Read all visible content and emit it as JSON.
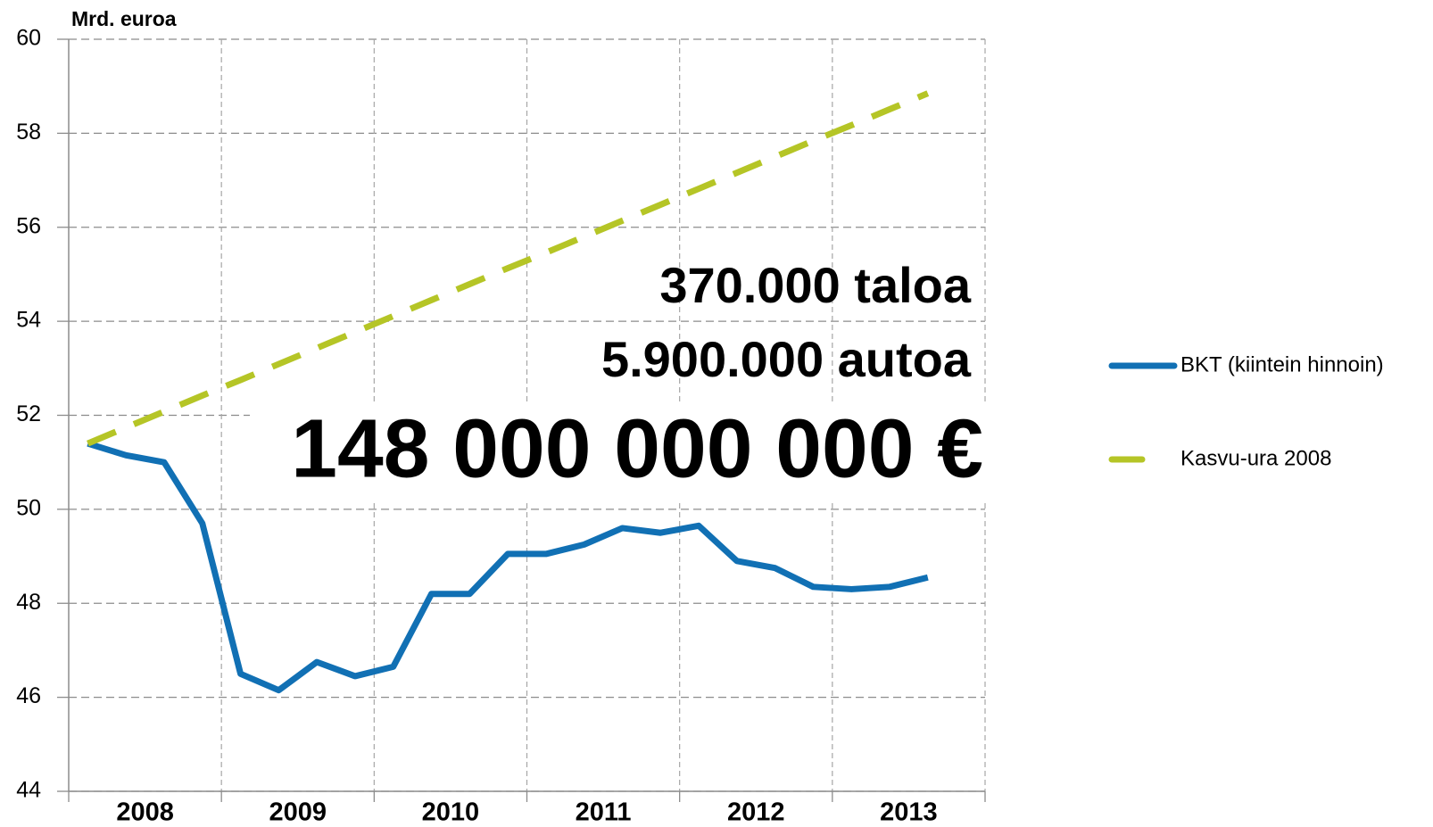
{
  "chart_data": {
    "type": "line",
    "y_axis_label": "Mrd. euroa",
    "categories": [
      "2008",
      "2009",
      "2010",
      "2011",
      "2012",
      "2013"
    ],
    "x": [
      2008.125,
      2008.375,
      2008.625,
      2008.875,
      2009.125,
      2009.375,
      2009.625,
      2009.875,
      2010.125,
      2010.375,
      2010.625,
      2010.875,
      2011.125,
      2011.375,
      2011.625,
      2011.875,
      2012.125,
      2012.375,
      2012.625,
      2012.875,
      2013.125,
      2013.375,
      2013.625
    ],
    "xlim": [
      2008,
      2014
    ],
    "xticks": [
      2008,
      2009,
      2010,
      2011,
      2012,
      2013,
      2014
    ],
    "ylim": [
      44,
      60
    ],
    "yticks": [
      44,
      46,
      48,
      50,
      52,
      54,
      56,
      58,
      60
    ],
    "grid": true,
    "series": [
      {
        "name": "BKT (kiintein hinnoin)",
        "color": "#1170b4",
        "dash": false,
        "values": [
          51.4,
          51.15,
          51.0,
          49.7,
          46.5,
          46.15,
          46.75,
          46.45,
          46.65,
          48.2,
          48.2,
          49.05,
          49.05,
          49.25,
          49.6,
          49.5,
          49.65,
          48.9,
          48.75,
          48.35,
          48.3,
          48.35,
          48.55
        ]
      },
      {
        "name": "Kasvu-ura 2008",
        "color": "#b5c526",
        "dash": true,
        "values": [
          51.4,
          51.74,
          52.08,
          52.42,
          52.75,
          53.09,
          53.43,
          53.77,
          54.11,
          54.45,
          54.79,
          55.13,
          55.46,
          55.8,
          56.14,
          56.48,
          56.82,
          57.16,
          57.5,
          57.84,
          58.17,
          58.51,
          58.85
        ]
      }
    ],
    "legend": "right",
    "annotations": [
      "370.000 taloa",
      "5.900.000 autoa",
      "148 000 000 000 €"
    ]
  }
}
